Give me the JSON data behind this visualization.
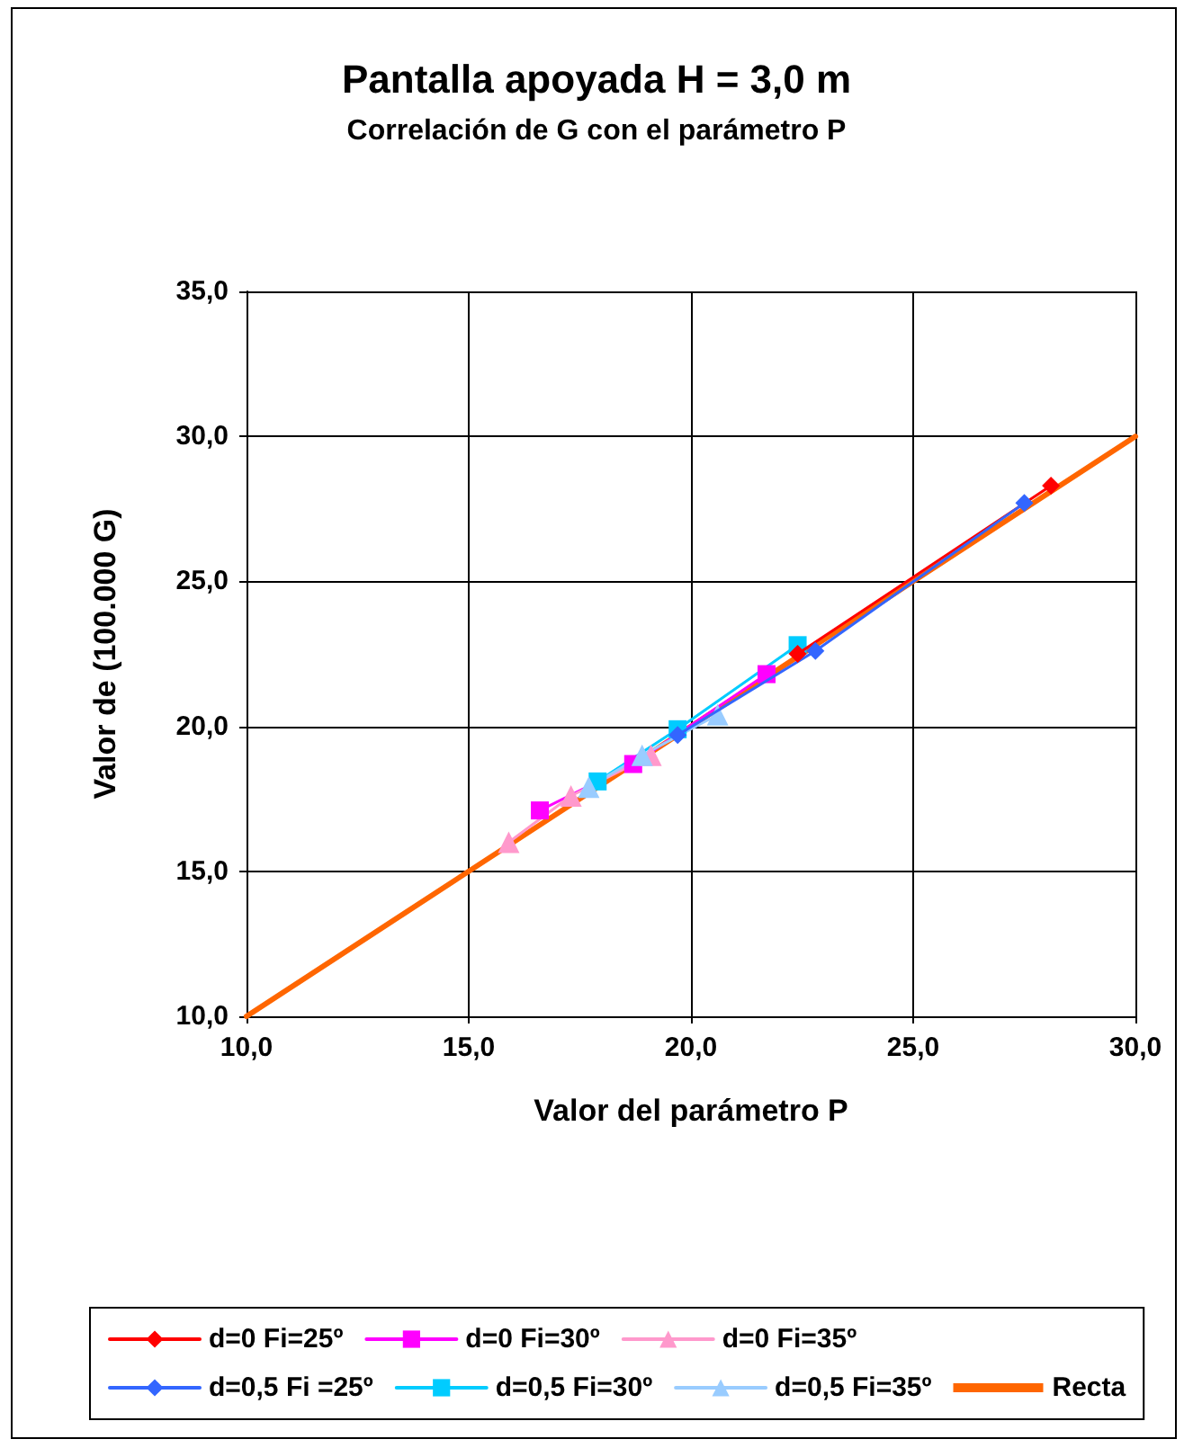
{
  "chart_data": {
    "type": "line",
    "title": "Pantalla apoyada H = 3,0 m",
    "subtitle": "Correlación de G con el parámetro P",
    "xlabel": "Valor del parámetro P",
    "ylabel": "Valor de (100.000 G)",
    "xlim": [
      10,
      30
    ],
    "xticks": [
      {
        "value": 10,
        "label": "10,0"
      },
      {
        "value": 15,
        "label": "15,0"
      },
      {
        "value": 20,
        "label": "20,0"
      },
      {
        "value": 25,
        "label": "25,0"
      },
      {
        "value": 30,
        "label": "30,0"
      }
    ],
    "ylim": [
      10,
      35
    ],
    "yticks": [
      {
        "value": 10,
        "label": "10,0"
      },
      {
        "value": 15,
        "label": "15,0"
      },
      {
        "value": 20,
        "label": "20,0"
      },
      {
        "value": 25,
        "label": "25,0"
      },
      {
        "value": 30,
        "label": "30,0"
      },
      {
        "value": 35,
        "label": "35,0"
      }
    ],
    "grid": true,
    "legend": "bottom",
    "line_style": "solid",
    "series": [
      {
        "name": "d=0 Fi=25º",
        "color": "#ff0000",
        "marker": "diamond",
        "x": [
          22.4,
          28.1
        ],
        "values": [
          22.5,
          28.3
        ]
      },
      {
        "name": "d=0 Fi=30º",
        "color": "#ff00ff",
        "marker": "square",
        "x": [
          16.6,
          18.7,
          21.7
        ],
        "values": [
          17.1,
          18.7,
          21.8
        ]
      },
      {
        "name": "d=0 Fi=35º",
        "color": "#ff99cc",
        "marker": "triangle",
        "x": [
          15.9,
          17.3,
          19.1
        ],
        "values": [
          16.0,
          17.6,
          19.0
        ]
      },
      {
        "name": "d=0,5 Fi =25º",
        "color": "#3366ff",
        "marker": "diamond",
        "x": [
          19.7,
          22.8,
          27.5
        ],
        "values": [
          19.7,
          22.6,
          27.7
        ]
      },
      {
        "name": "d=0,5 Fi=30º",
        "color": "#00ccff",
        "marker": "square",
        "x": [
          17.9,
          19.7,
          22.4
        ],
        "values": [
          18.1,
          19.9,
          22.8
        ]
      },
      {
        "name": "d=0,5 Fi=35º",
        "color": "#99ccff",
        "marker": "triangle",
        "x": [
          17.7,
          18.9,
          20.6
        ],
        "values": [
          17.9,
          19.0,
          20.4
        ]
      },
      {
        "name": "Recta",
        "color": "#ff6600",
        "marker": "none",
        "x": [
          10,
          30
        ],
        "values": [
          10,
          30
        ]
      }
    ]
  }
}
